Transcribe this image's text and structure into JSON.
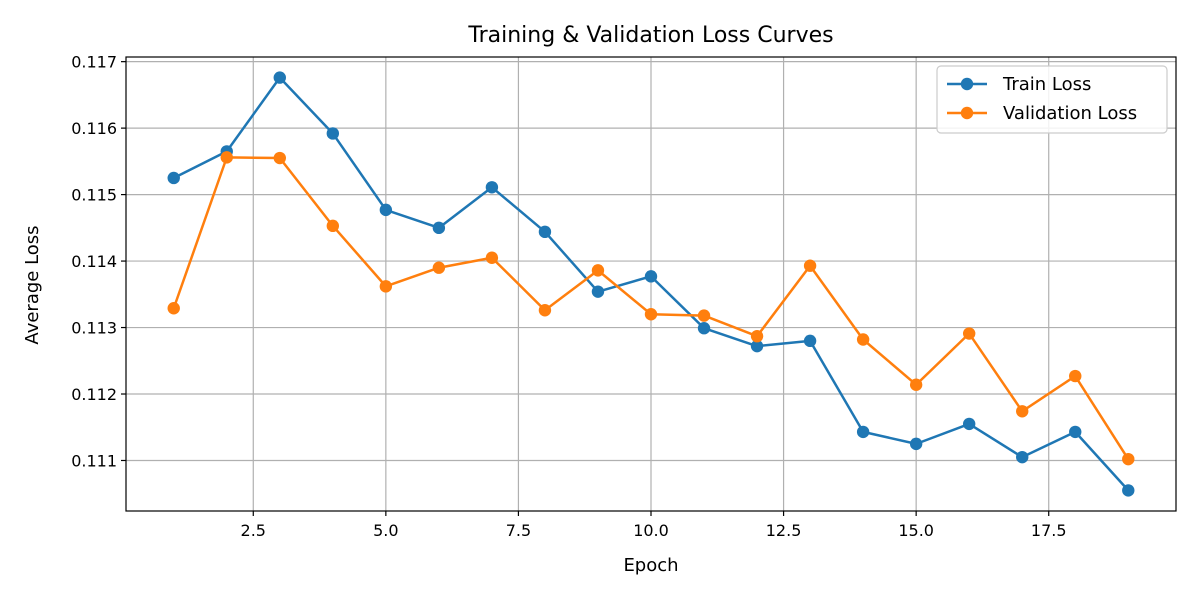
{
  "chart_data": {
    "type": "line",
    "title": "Training & Validation Loss Curves",
    "xlabel": "Epoch",
    "ylabel": "Average Loss",
    "xlim": [
      0.1,
      19.9
    ],
    "ylim": [
      0.11024,
      0.11707
    ],
    "xticks": [
      2.5,
      5.0,
      7.5,
      10.0,
      12.5,
      15.0,
      17.5
    ],
    "xtick_labels": [
      "2.5",
      "5.0",
      "7.5",
      "10.0",
      "12.5",
      "15.0",
      "17.5"
    ],
    "yticks": [
      0.111,
      0.112,
      0.113,
      0.114,
      0.115,
      0.116,
      0.117
    ],
    "ytick_labels": [
      "0.111",
      "0.112",
      "0.113",
      "0.114",
      "0.115",
      "0.116",
      "0.117"
    ],
    "grid": true,
    "legend_position": "top-right",
    "x": [
      1,
      2,
      3,
      4,
      5,
      6,
      7,
      8,
      9,
      10,
      11,
      12,
      13,
      14,
      15,
      16,
      17,
      18,
      19
    ],
    "series": [
      {
        "name": "Train Loss",
        "color": "#1f77b4",
        "values": [
          0.11525,
          0.11565,
          0.11676,
          0.11592,
          0.11477,
          0.1145,
          0.11511,
          0.11444,
          0.11354,
          0.11377,
          0.11299,
          0.11272,
          0.1128,
          0.11143,
          0.11125,
          0.11155,
          0.11105,
          0.11143,
          0.11055
        ]
      },
      {
        "name": "Validation Loss",
        "color": "#ff7f0e",
        "values": [
          0.11329,
          0.11556,
          0.11555,
          0.11453,
          0.11362,
          0.1139,
          0.11405,
          0.11326,
          0.11386,
          0.1132,
          0.11318,
          0.11287,
          0.11393,
          0.11282,
          0.11214,
          0.11291,
          0.11174,
          0.11227,
          0.11102
        ]
      }
    ]
  }
}
